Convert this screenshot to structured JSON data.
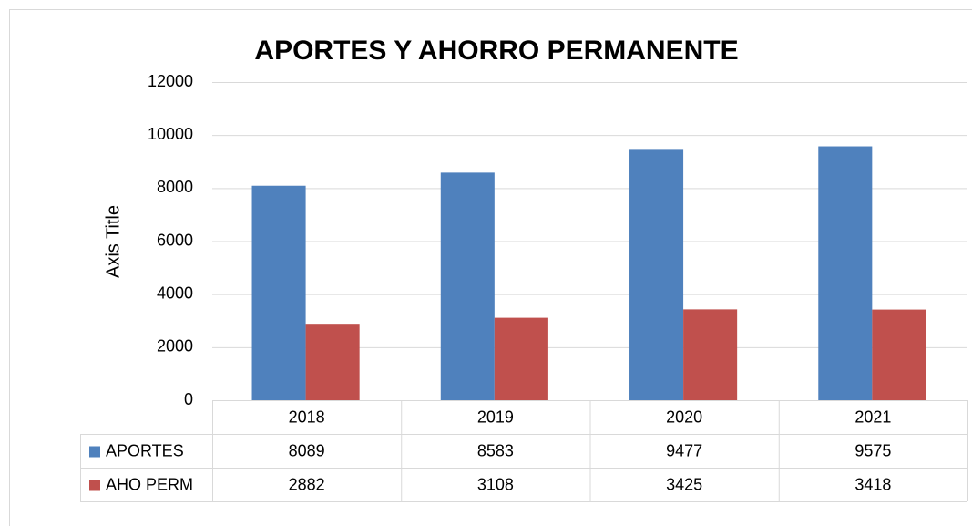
{
  "chart_data": {
    "type": "bar",
    "title": "APORTES Y AHORRO PERMANENTE",
    "y_axis_label": "Axis Title",
    "categories": [
      "2018",
      "2019",
      "2020",
      "2021"
    ],
    "series": [
      {
        "name": "APORTES",
        "color": "#4f81bd",
        "values": [
          8089,
          8583,
          9477,
          9575
        ]
      },
      {
        "name": "AHO PERM",
        "color": "#c0504d",
        "values": [
          2882,
          3108,
          3425,
          3418
        ]
      }
    ],
    "ylim": [
      0,
      12000
    ],
    "yticks": [
      0,
      2000,
      4000,
      6000,
      8000,
      10000,
      12000
    ],
    "grid": true,
    "data_table": true
  }
}
